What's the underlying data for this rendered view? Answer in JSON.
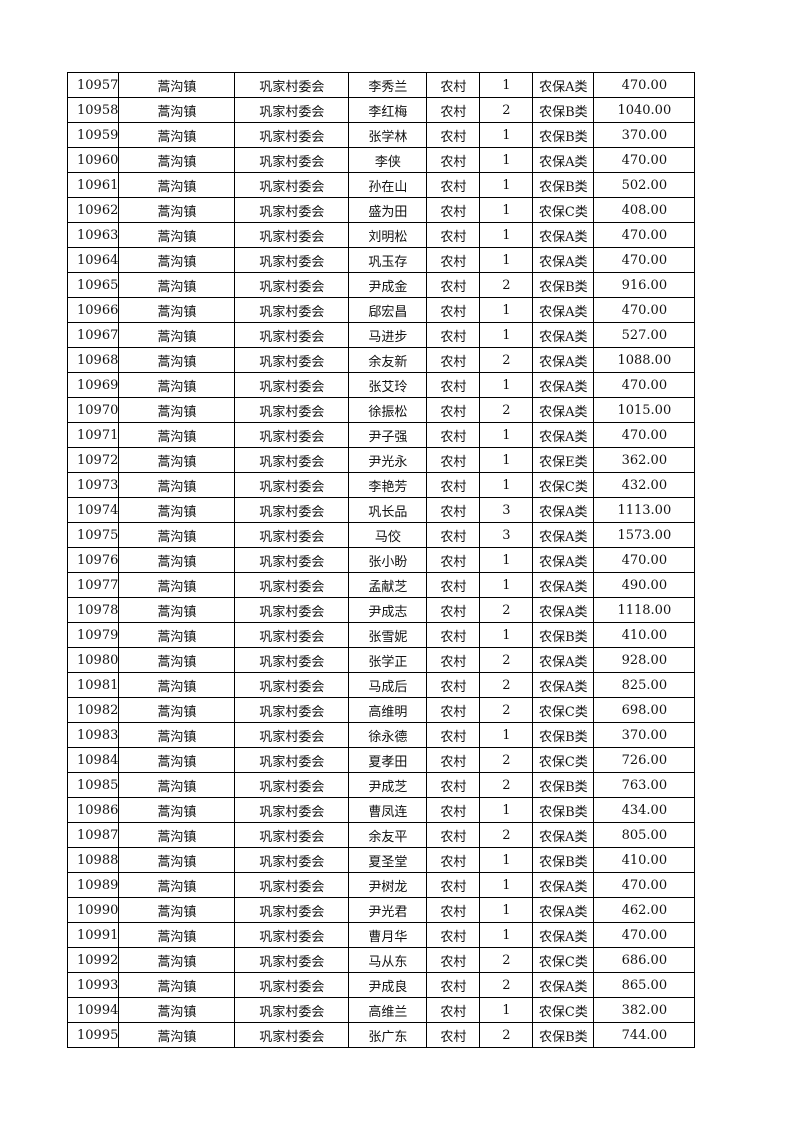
{
  "table": {
    "rows": [
      [
        "10957",
        "蒿沟镇",
        "巩家村委会",
        "李秀兰",
        "农村",
        "1",
        "农保A类",
        "470.00"
      ],
      [
        "10958",
        "蒿沟镇",
        "巩家村委会",
        "李红梅",
        "农村",
        "2",
        "农保B类",
        "1040.00"
      ],
      [
        "10959",
        "蒿沟镇",
        "巩家村委会",
        "张学林",
        "农村",
        "1",
        "农保B类",
        "370.00"
      ],
      [
        "10960",
        "蒿沟镇",
        "巩家村委会",
        "李侠",
        "农村",
        "1",
        "农保A类",
        "470.00"
      ],
      [
        "10961",
        "蒿沟镇",
        "巩家村委会",
        "孙在山",
        "农村",
        "1",
        "农保B类",
        "502.00"
      ],
      [
        "10962",
        "蒿沟镇",
        "巩家村委会",
        "盛为田",
        "农村",
        "1",
        "农保C类",
        "408.00"
      ],
      [
        "10963",
        "蒿沟镇",
        "巩家村委会",
        "刘明松",
        "农村",
        "1",
        "农保A类",
        "470.00"
      ],
      [
        "10964",
        "蒿沟镇",
        "巩家村委会",
        "巩玉存",
        "农村",
        "1",
        "农保A类",
        "470.00"
      ],
      [
        "10965",
        "蒿沟镇",
        "巩家村委会",
        "尹成金",
        "农村",
        "2",
        "农保B类",
        "916.00"
      ],
      [
        "10966",
        "蒿沟镇",
        "巩家村委会",
        "郈宏昌",
        "农村",
        "1",
        "农保A类",
        "470.00"
      ],
      [
        "10967",
        "蒿沟镇",
        "巩家村委会",
        "马进步",
        "农村",
        "1",
        "农保A类",
        "527.00"
      ],
      [
        "10968",
        "蒿沟镇",
        "巩家村委会",
        "余友新",
        "农村",
        "2",
        "农保A类",
        "1088.00"
      ],
      [
        "10969",
        "蒿沟镇",
        "巩家村委会",
        "张艾玲",
        "农村",
        "1",
        "农保A类",
        "470.00"
      ],
      [
        "10970",
        "蒿沟镇",
        "巩家村委会",
        "徐振松",
        "农村",
        "2",
        "农保A类",
        "1015.00"
      ],
      [
        "10971",
        "蒿沟镇",
        "巩家村委会",
        "尹子强",
        "农村",
        "1",
        "农保A类",
        "470.00"
      ],
      [
        "10972",
        "蒿沟镇",
        "巩家村委会",
        "尹光永",
        "农村",
        "1",
        "农保E类",
        "362.00"
      ],
      [
        "10973",
        "蒿沟镇",
        "巩家村委会",
        "李艳芳",
        "农村",
        "1",
        "农保C类",
        "432.00"
      ],
      [
        "10974",
        "蒿沟镇",
        "巩家村委会",
        "巩长品",
        "农村",
        "3",
        "农保A类",
        "1113.00"
      ],
      [
        "10975",
        "蒿沟镇",
        "巩家村委会",
        "马佼",
        "农村",
        "3",
        "农保A类",
        "1573.00"
      ],
      [
        "10976",
        "蒿沟镇",
        "巩家村委会",
        "张小盼",
        "农村",
        "1",
        "农保A类",
        "470.00"
      ],
      [
        "10977",
        "蒿沟镇",
        "巩家村委会",
        "孟献芝",
        "农村",
        "1",
        "农保A类",
        "490.00"
      ],
      [
        "10978",
        "蒿沟镇",
        "巩家村委会",
        "尹成志",
        "农村",
        "2",
        "农保A类",
        "1118.00"
      ],
      [
        "10979",
        "蒿沟镇",
        "巩家村委会",
        "张雪妮",
        "农村",
        "1",
        "农保B类",
        "410.00"
      ],
      [
        "10980",
        "蒿沟镇",
        "巩家村委会",
        "张学正",
        "农村",
        "2",
        "农保A类",
        "928.00"
      ],
      [
        "10981",
        "蒿沟镇",
        "巩家村委会",
        "马成后",
        "农村",
        "2",
        "农保A类",
        "825.00"
      ],
      [
        "10982",
        "蒿沟镇",
        "巩家村委会",
        "高维明",
        "农村",
        "2",
        "农保C类",
        "698.00"
      ],
      [
        "10983",
        "蒿沟镇",
        "巩家村委会",
        "徐永德",
        "农村",
        "1",
        "农保B类",
        "370.00"
      ],
      [
        "10984",
        "蒿沟镇",
        "巩家村委会",
        "夏孝田",
        "农村",
        "2",
        "农保C类",
        "726.00"
      ],
      [
        "10985",
        "蒿沟镇",
        "巩家村委会",
        "尹成芝",
        "农村",
        "2",
        "农保B类",
        "763.00"
      ],
      [
        "10986",
        "蒿沟镇",
        "巩家村委会",
        "曹凤连",
        "农村",
        "1",
        "农保B类",
        "434.00"
      ],
      [
        "10987",
        "蒿沟镇",
        "巩家村委会",
        "余友平",
        "农村",
        "2",
        "农保A类",
        "805.00"
      ],
      [
        "10988",
        "蒿沟镇",
        "巩家村委会",
        "夏圣堂",
        "农村",
        "1",
        "农保B类",
        "410.00"
      ],
      [
        "10989",
        "蒿沟镇",
        "巩家村委会",
        "尹树龙",
        "农村",
        "1",
        "农保A类",
        "470.00"
      ],
      [
        "10990",
        "蒿沟镇",
        "巩家村委会",
        "尹光君",
        "农村",
        "1",
        "农保A类",
        "462.00"
      ],
      [
        "10991",
        "蒿沟镇",
        "巩家村委会",
        "曹月华",
        "农村",
        "1",
        "农保A类",
        "470.00"
      ],
      [
        "10992",
        "蒿沟镇",
        "巩家村委会",
        "马从东",
        "农村",
        "2",
        "农保C类",
        "686.00"
      ],
      [
        "10993",
        "蒿沟镇",
        "巩家村委会",
        "尹成良",
        "农村",
        "2",
        "农保A类",
        "865.00"
      ],
      [
        "10994",
        "蒿沟镇",
        "巩家村委会",
        "高维兰",
        "农村",
        "1",
        "农保C类",
        "382.00"
      ],
      [
        "10995",
        "蒿沟镇",
        "巩家村委会",
        "张广东",
        "农村",
        "2",
        "农保B类",
        "744.00"
      ]
    ]
  }
}
